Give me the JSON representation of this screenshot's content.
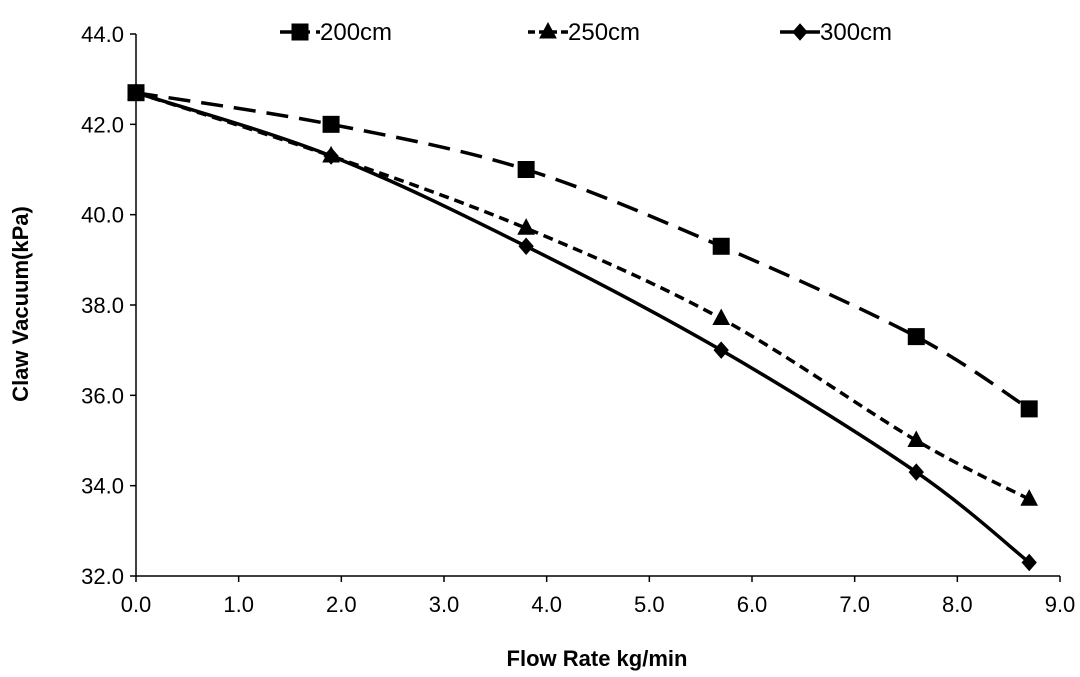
{
  "chart_data": {
    "type": "line",
    "title": "",
    "xlabel": "Flow Rate kg/min",
    "ylabel": "Claw Vacuum(kPa)",
    "xlim": [
      0.0,
      9.0
    ],
    "ylim": [
      32.0,
      44.0
    ],
    "x_ticks": [
      "0.0",
      "1.0",
      "2.0",
      "3.0",
      "4.0",
      "5.0",
      "6.0",
      "7.0",
      "8.0",
      "9.0"
    ],
    "y_ticks": [
      "32.0",
      "34.0",
      "36.0",
      "38.0",
      "40.0",
      "42.0",
      "44.0"
    ],
    "grid": false,
    "legend_position": "top",
    "x": [
      0.0,
      1.9,
      3.8,
      5.7,
      7.6,
      8.7
    ],
    "series": [
      {
        "name": "200cm",
        "marker": "square",
        "line_style": "long-dash",
        "color": "#000000",
        "values": [
          42.7,
          42.0,
          41.0,
          39.3,
          37.3,
          35.7
        ]
      },
      {
        "name": "250cm",
        "marker": "triangle",
        "line_style": "short-dash",
        "color": "#000000",
        "values": [
          42.7,
          41.3,
          39.7,
          37.7,
          35.0,
          33.7
        ]
      },
      {
        "name": "300cm",
        "marker": "diamond",
        "line_style": "solid",
        "color": "#000000",
        "values": [
          42.7,
          41.3,
          39.3,
          37.0,
          34.3,
          32.3
        ]
      }
    ]
  }
}
